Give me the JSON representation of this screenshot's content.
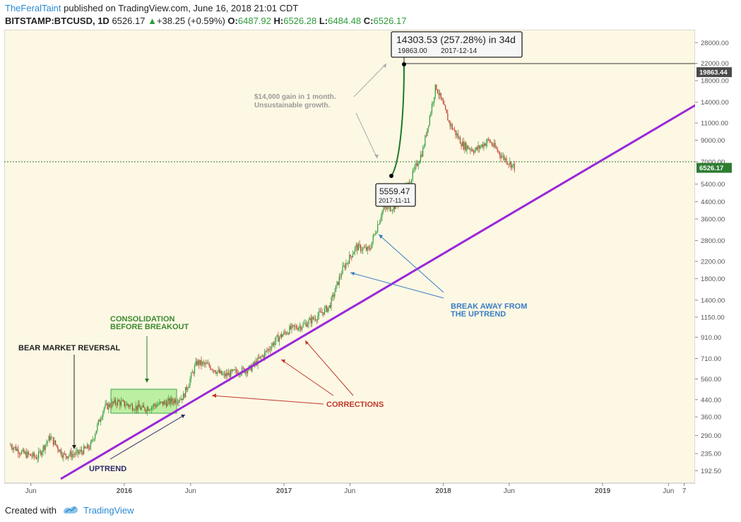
{
  "header": {
    "author": "TheFeralTaint",
    "published_text": "published on TradingView.com, June 16, 2018 21:01 CDT",
    "symbol": "BITSTAMP:BTCUSD, 1D",
    "last": "6526.17",
    "change_arrow": "▲",
    "change": "+38.25 (+0.59%)",
    "o_label": "O:",
    "o_value": "6487.92",
    "h_label": "H:",
    "h_value": "6526.28",
    "l_label": "L:",
    "l_value": "6484.48",
    "c_label": "C:",
    "c_value": "6526.17"
  },
  "footer": {
    "created_with": "Created with",
    "brand": "TradingView"
  },
  "colors": {
    "up": "#2e9c3a",
    "down": "#c0392b",
    "trendline": "#9b27d9",
    "plot_bg": "#fdf8e4",
    "consolidation": "#b5ef9b"
  },
  "chart_data": {
    "type": "candlestick",
    "scale": "log",
    "x_ticks": [
      "Jun",
      "2016",
      "Jun",
      "2017",
      "Jun",
      "2018",
      "Jun",
      "2019",
      "Jun",
      "7"
    ],
    "y_ticks": [
      "28000.00",
      "22000.00",
      "18000.00",
      "14000.00",
      "11000.00",
      "9000.00",
      "7000.00",
      "5400.00",
      "4400.00",
      "3600.00",
      "2800.00",
      "2200.00",
      "1800.00",
      "1400.00",
      "1150.00",
      "910.00",
      "710.00",
      "560.00",
      "440.00",
      "360.00",
      "290.00",
      "235.00",
      "192.50"
    ],
    "ylim": [
      175,
      31000
    ],
    "price_tags": [
      {
        "label": "19863.44",
        "value": 19863.44,
        "style": "dark"
      },
      {
        "label": "6526.17",
        "value": 6526.17,
        "style": "green"
      }
    ],
    "series_path": [
      [
        "2015-04",
        260
      ],
      [
        "2015-05",
        235
      ],
      [
        "2015-06",
        225
      ],
      [
        "2015-07",
        285
      ],
      [
        "2015-08",
        230
      ],
      [
        "2015-09",
        235
      ],
      [
        "2015-10",
        255
      ],
      [
        "2015-11",
        400
      ],
      [
        "2015-12",
        430
      ],
      [
        "2016-01",
        410
      ],
      [
        "2016-02",
        395
      ],
      [
        "2016-03",
        415
      ],
      [
        "2016-04",
        430
      ],
      [
        "2016-05",
        455
      ],
      [
        "2016-06",
        680
      ],
      [
        "2016-07",
        650
      ],
      [
        "2016-08",
        580
      ],
      [
        "2016-09",
        610
      ],
      [
        "2016-10",
        630
      ],
      [
        "2016-11",
        740
      ],
      [
        "2016-12",
        890
      ],
      [
        "2017-01",
        1000
      ],
      [
        "2017-02",
        1050
      ],
      [
        "2017-03",
        1150
      ],
      [
        "2017-04",
        1300
      ],
      [
        "2017-05",
        2000
      ],
      [
        "2017-06",
        2600
      ],
      [
        "2017-07",
        2500
      ],
      [
        "2017-08",
        4000
      ],
      [
        "2017-09",
        4200
      ],
      [
        "2017-10",
        5500
      ],
      [
        "2017-11",
        8000
      ],
      [
        "2017-12",
        17000
      ],
      [
        "2018-01",
        11000
      ],
      [
        "2018-02",
        8500
      ],
      [
        "2018-03",
        8000
      ],
      [
        "2018-04",
        9000
      ],
      [
        "2018-05",
        7500
      ],
      [
        "2018-06",
        6526.17
      ]
    ],
    "measurement": {
      "text": "14303.53 (257.28%) in 34d",
      "high_value": "19863.00",
      "high_date": "2017-12-14",
      "low_value": "5559.47",
      "low_date": "2017-11-11"
    },
    "annotations": {
      "bear_reversal": "BEAR MARKET REVERSAL",
      "consolidation_1": "CONSOLIDATION",
      "consolidation_2": "BEFORE BREAKOUT",
      "uptrend": "UPTREND",
      "corrections": "CORRECTIONS",
      "break_away_1": "BREAK AWAY FROM",
      "break_away_2": "THE UPTREND",
      "gain_1": "$14,000 gain in 1 month.",
      "gain_2": "Unsustainable growth."
    }
  }
}
